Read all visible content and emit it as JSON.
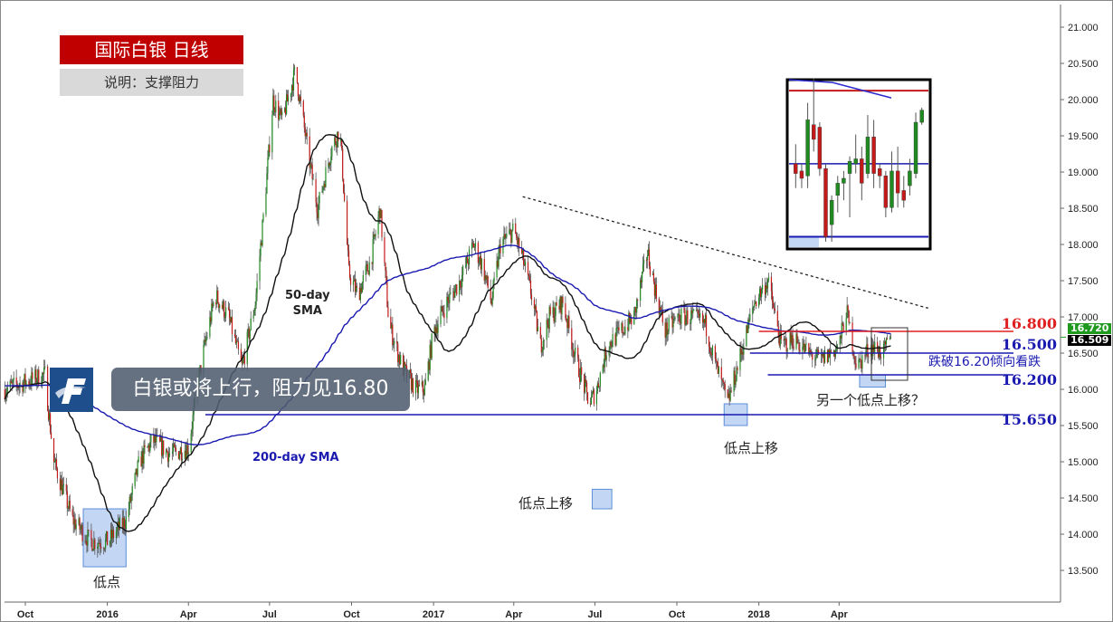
{
  "header": {
    "title": "国际白银  日线",
    "subtitle": "说明：支撑阻力"
  },
  "banner": {
    "text": "白银或将上行，阻力见16.80",
    "logo_letter": "F"
  },
  "annotations": {
    "sma50": "50-day\nSMA",
    "sma200": "200-day SMA",
    "low1": "低点",
    "low2": "低点上移",
    "low3": "低点上移",
    "low4": "另一个低点上移？",
    "bearish": "跌破16.20倾向看跌"
  },
  "levels": [
    {
      "label": "16.800",
      "value": 16.8,
      "color": "#e02020",
      "from": "2018-01-01"
    },
    {
      "label": "16.500",
      "value": 16.5,
      "color": "#1a1ab0",
      "from": "2017-12-22"
    },
    {
      "label": "16.200",
      "value": 16.2,
      "color": "#1a1ab0",
      "from": "2018-01-11"
    },
    {
      "label": "15.650",
      "value": 15.65,
      "color": "#1a1ab0",
      "from": "2016-04-20"
    }
  ],
  "price_tags": [
    {
      "label": "16.720",
      "value": 16.72,
      "color": "#1f9a1f"
    },
    {
      "label": "16.509",
      "value": 16.509,
      "color": "#000000"
    }
  ],
  "chart_data": {
    "type": "candlestick",
    "ylim": [
      13.0,
      21.25
    ],
    "yticks": [
      "13.500",
      "14.000",
      "14.500",
      "15.000",
      "15.500",
      "16.000",
      "16.500",
      "17.000",
      "17.500",
      "18.000",
      "18.500",
      "19.000",
      "19.500",
      "20.000",
      "20.500",
      "21.000"
    ],
    "xticks": [
      {
        "label": "Oct",
        "date": "2015-10-01"
      },
      {
        "label": "2016",
        "date": "2016-01-01"
      },
      {
        "label": "Apr",
        "date": "2016-04-01"
      },
      {
        "label": "Jul",
        "date": "2016-07-01"
      },
      {
        "label": "Oct",
        "date": "2016-10-01"
      },
      {
        "label": "2017",
        "date": "2017-01-01"
      },
      {
        "label": "Apr",
        "date": "2017-04-01"
      },
      {
        "label": "Jul",
        "date": "2017-07-01"
      },
      {
        "label": "Oct",
        "date": "2017-10-01"
      },
      {
        "label": "2018",
        "date": "2018-01-01"
      },
      {
        "label": "Apr",
        "date": "2018-04-01"
      }
    ],
    "closes": [
      [
        "2015-09-08",
        16.0
      ],
      [
        "2015-10-23",
        16.2
      ],
      [
        "2015-11-02",
        15.0
      ],
      [
        "2015-11-23",
        14.2
      ],
      [
        "2015-12-13",
        13.9
      ],
      [
        "2016-01-02",
        13.9
      ],
      [
        "2016-01-22",
        14.2
      ],
      [
        "2016-02-06",
        15.0
      ],
      [
        "2016-02-21",
        15.3
      ],
      [
        "2016-03-12",
        15.1
      ],
      [
        "2016-04-01",
        15.2
      ],
      [
        "2016-04-16",
        16.4
      ],
      [
        "2016-05-01",
        17.3
      ],
      [
        "2016-05-16",
        17.0
      ],
      [
        "2016-05-31",
        16.3
      ],
      [
        "2016-06-15",
        17.2
      ],
      [
        "2016-06-25",
        18.5
      ],
      [
        "2016-07-05",
        20.0
      ],
      [
        "2016-07-15",
        19.7
      ],
      [
        "2016-07-30",
        20.4
      ],
      [
        "2016-08-14",
        19.2
      ],
      [
        "2016-08-24",
        18.5
      ],
      [
        "2016-09-08",
        19.3
      ],
      [
        "2016-09-18",
        19.6
      ],
      [
        "2016-09-28",
        17.6
      ],
      [
        "2016-10-08",
        17.3
      ],
      [
        "2016-10-23",
        17.8
      ],
      [
        "2016-11-02",
        18.5
      ],
      [
        "2016-11-12",
        16.9
      ],
      [
        "2016-11-27",
        16.3
      ],
      [
        "2016-12-12",
        16.0
      ],
      [
        "2016-12-22",
        16.0
      ],
      [
        "2017-01-01",
        16.8
      ],
      [
        "2017-01-16",
        17.2
      ],
      [
        "2017-01-31",
        17.5
      ],
      [
        "2017-02-15",
        18.0
      ],
      [
        "2017-02-25",
        17.7
      ],
      [
        "2017-03-07",
        17.2
      ],
      [
        "2017-03-17",
        18.0
      ],
      [
        "2017-04-01",
        18.2
      ],
      [
        "2017-04-11",
        17.8
      ],
      [
        "2017-04-21",
        17.3
      ],
      [
        "2017-05-01",
        16.6
      ],
      [
        "2017-05-11",
        17.0
      ],
      [
        "2017-05-26",
        17.2
      ],
      [
        "2017-06-10",
        16.4
      ],
      [
        "2017-06-25",
        15.8
      ],
      [
        "2017-07-03",
        16.0
      ],
      [
        "2017-07-15",
        16.6
      ],
      [
        "2017-07-30",
        16.8
      ],
      [
        "2017-08-14",
        17.0
      ],
      [
        "2017-08-29",
        17.9
      ],
      [
        "2017-09-08",
        17.3
      ],
      [
        "2017-09-18",
        16.8
      ],
      [
        "2017-10-03",
        17.0
      ],
      [
        "2017-10-18",
        17.0
      ],
      [
        "2017-11-02",
        16.9
      ],
      [
        "2017-11-12",
        16.4
      ],
      [
        "2017-11-27",
        15.8
      ],
      [
        "2017-12-12",
        16.5
      ],
      [
        "2017-12-27",
        17.2
      ],
      [
        "2018-01-11",
        17.5
      ],
      [
        "2018-01-26",
        16.6
      ],
      [
        "2018-02-10",
        16.7
      ],
      [
        "2018-02-25",
        16.5
      ],
      [
        "2018-03-12",
        16.4
      ],
      [
        "2018-04-01",
        16.6
      ],
      [
        "2018-04-09",
        17.1
      ],
      [
        "2018-04-21",
        16.3
      ],
      [
        "2018-05-06",
        16.6
      ],
      [
        "2018-05-21",
        16.5
      ],
      [
        "2018-05-29",
        16.72
      ]
    ],
    "trendline": [
      [
        "2017-04-11",
        18.66
      ],
      [
        "2018-07-10",
        17.12
      ]
    ],
    "sma": [
      {
        "name": "50-day SMA",
        "period": 50,
        "color": "#111111"
      },
      {
        "name": "200-day SMA",
        "period": 200,
        "color": "#1a1ab0"
      }
    ],
    "inset": {
      "ylim": [
        16.15,
        16.845
      ],
      "levels": [
        16.8,
        16.5,
        16.2
      ],
      "candles": [
        [
          16.5,
          16.58,
          16.4,
          16.46
        ],
        [
          16.47,
          16.5,
          16.4,
          16.44
        ],
        [
          16.45,
          16.75,
          16.4,
          16.68
        ],
        [
          16.66,
          16.85,
          16.55,
          16.6
        ],
        [
          16.65,
          16.67,
          16.45,
          16.48
        ],
        [
          16.48,
          16.5,
          16.18,
          16.2
        ],
        [
          16.25,
          16.37,
          16.18,
          16.35
        ],
        [
          16.37,
          16.45,
          16.3,
          16.42
        ],
        [
          16.42,
          16.47,
          16.35,
          16.44
        ],
        [
          16.46,
          16.53,
          16.28,
          16.51
        ],
        [
          16.5,
          16.62,
          16.46,
          16.52
        ],
        [
          16.52,
          16.57,
          16.35,
          16.42
        ],
        [
          16.46,
          16.7,
          16.44,
          16.61
        ],
        [
          16.61,
          16.68,
          16.4,
          16.46
        ],
        [
          16.48,
          16.5,
          16.4,
          16.45
        ],
        [
          16.45,
          16.47,
          16.28,
          16.32
        ],
        [
          16.32,
          16.55,
          16.3,
          16.47
        ],
        [
          16.47,
          16.57,
          16.32,
          16.38
        ],
        [
          16.39,
          16.45,
          16.32,
          16.35
        ],
        [
          16.41,
          16.52,
          16.37,
          16.47
        ],
        [
          16.46,
          16.71,
          16.44,
          16.67
        ],
        [
          16.67,
          16.73,
          16.66,
          16.72
        ]
      ]
    },
    "colors": {
      "up": "#1f8a1f",
      "down": "#c41a1a",
      "wick": "#555555",
      "highlight": "#a9c6f0"
    }
  }
}
